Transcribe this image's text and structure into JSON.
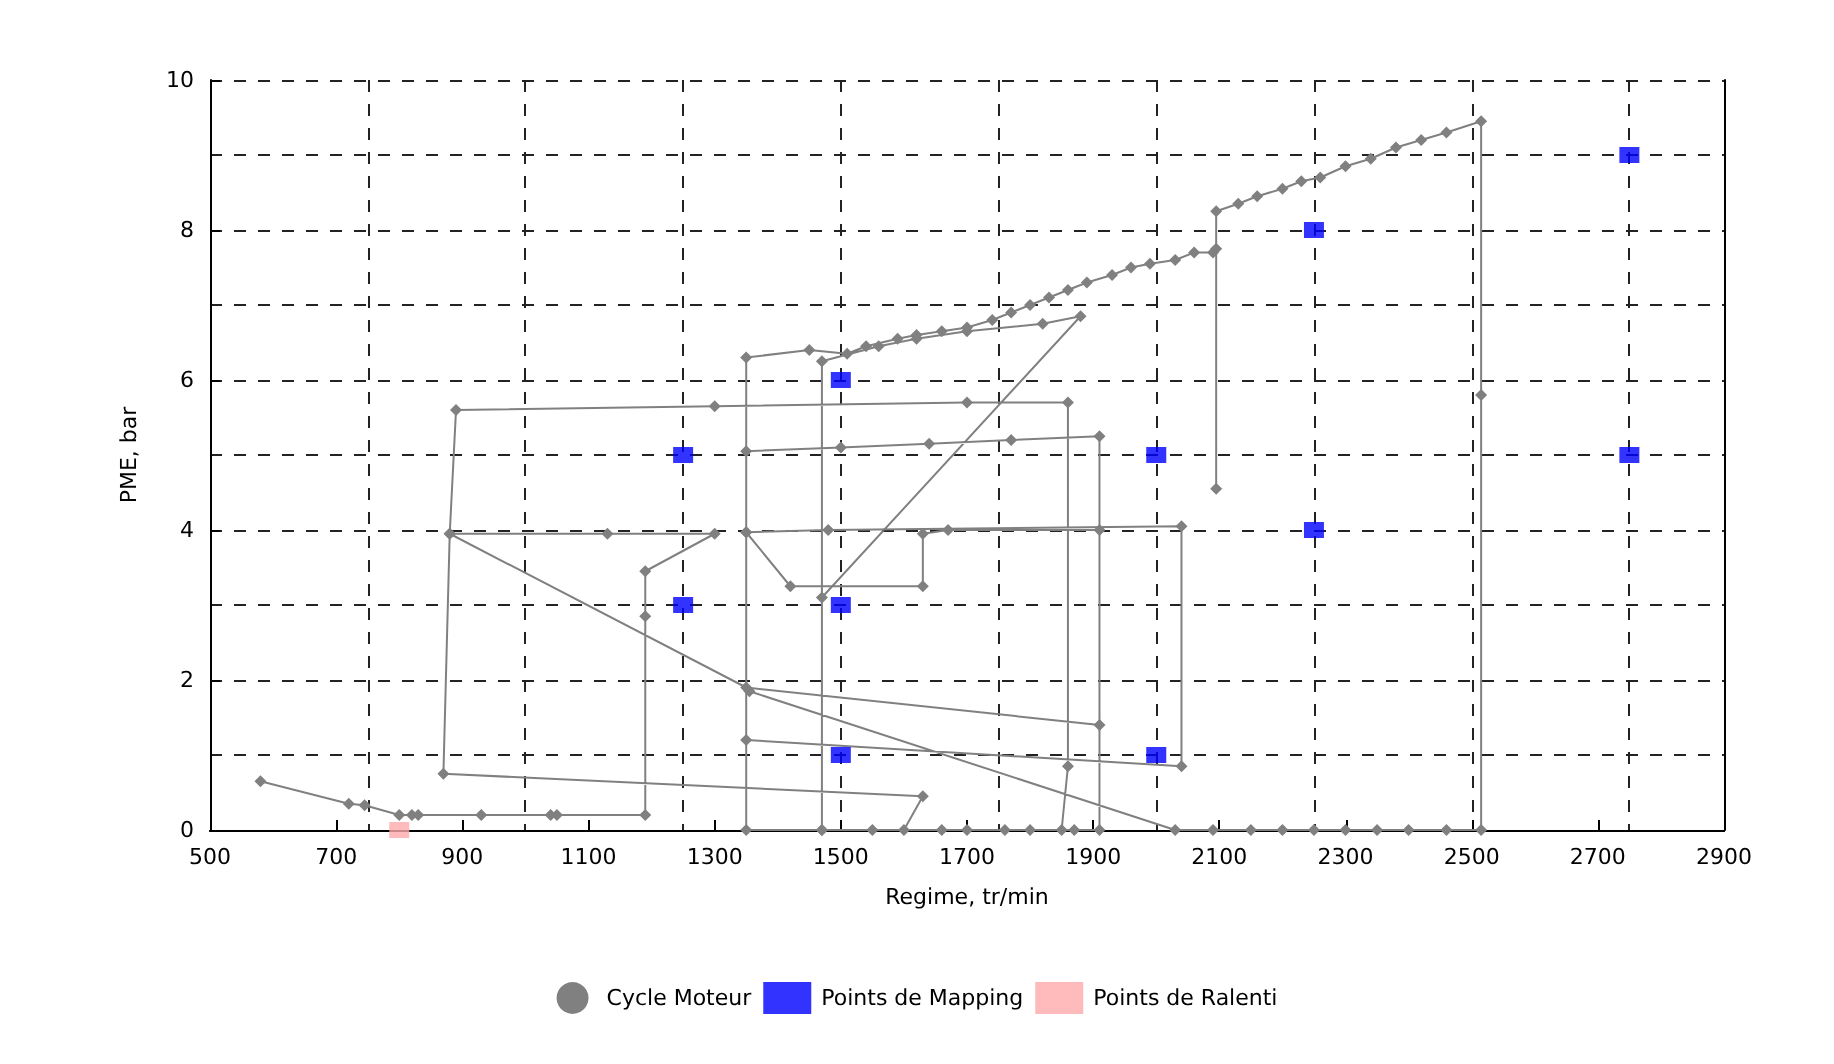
{
  "chart_data": {
    "type": "scatter",
    "xlabel": "Regime, tr/min",
    "ylabel": "PME, bar",
    "xlim": [
      500,
      2900
    ],
    "xticks": [
      500,
      700,
      900,
      1100,
      1300,
      1500,
      1700,
      1900,
      2100,
      2300,
      2500,
      2700,
      2900,
      {
        "value": 750,
        "label": null
      },
      {
        "value": 1000,
        "label": null
      },
      {
        "value": 1250,
        "label": null
      },
      {
        "value": 1500,
        "label": null
      },
      {
        "value": 1750,
        "label": null
      },
      {
        "value": 2000,
        "label": null
      },
      {
        "value": 2250,
        "label": null
      },
      {
        "value": 2500,
        "label": null
      },
      {
        "value": 2750,
        "label": null
      }
    ],
    "ylim": [
      0,
      10
    ],
    "yticks": [
      0,
      2,
      4,
      6,
      8,
      10,
      {
        "value": 1,
        "label": null
      },
      {
        "value": 3,
        "label": null
      },
      {
        "value": 5,
        "label": null
      },
      {
        "value": 7,
        "label": null
      },
      {
        "value": 9,
        "label": null
      }
    ],
    "grid": true,
    "legend": "bottom",
    "series": [
      {
        "name": "Cycle Moteur",
        "type": "line",
        "marker": "diamond",
        "color": "#808080",
        "x": [
          580,
          720,
          745,
          800,
          820,
          830,
          930,
          1040,
          1050,
          1190,
          1190,
          1190,
          1300,
          1130,
          880,
          890,
          1300,
          1700,
          1860,
          1860,
          1850,
          1800,
          1760,
          1700,
          1660,
          1600,
          1630,
          870,
          880,
          1350,
          1910,
          1910,
          1670,
          1630,
          1630,
          1420,
          1350,
          1350,
          2040,
          2040,
          1480,
          1350,
          1350,
          1500,
          1640,
          1770,
          1910,
          1910,
          1870,
          1550,
          1470,
          1470,
          1880,
          1820,
          1700,
          1620,
          1560,
          1470,
          1470,
          1350,
          1350,
          1450,
          1510,
          1540,
          1590,
          1620,
          1660,
          1700,
          1740,
          1770,
          1800,
          1830,
          1860,
          1890,
          1930,
          1960,
          1990,
          2030,
          2060,
          2090,
          2095,
          2095,
          2095,
          2130,
          2160,
          2200,
          2230,
          2260,
          2300,
          2340,
          2380,
          2420,
          2460,
          2515,
          2515,
          2515,
          2460,
          2400,
          2350,
          2300,
          2250,
          2200,
          2150,
          2090,
          2030,
          1355
        ],
        "values": [
          0.65,
          0.35,
          0.33,
          0.2,
          0.2,
          0.2,
          0.2,
          0.2,
          0.2,
          0.2,
          2.85,
          3.45,
          3.95,
          3.95,
          3.95,
          5.6,
          5.65,
          5.7,
          5.7,
          0.85,
          0,
          0,
          0,
          0,
          0,
          0,
          0.45,
          0.75,
          3.95,
          1.9,
          1.4,
          4.0,
          4.0,
          3.95,
          3.25,
          3.25,
          3.97,
          1.2,
          0.85,
          4.05,
          4.0,
          3.97,
          5.05,
          5.1,
          5.15,
          5.2,
          5.25,
          0,
          0,
          0,
          0,
          3.1,
          6.85,
          6.75,
          6.65,
          6.55,
          6.45,
          6.25,
          0,
          0,
          6.3,
          6.4,
          6.35,
          6.45,
          6.55,
          6.6,
          6.65,
          6.7,
          6.8,
          6.9,
          7.0,
          7.1,
          7.2,
          7.3,
          7.4,
          7.5,
          7.55,
          7.6,
          7.7,
          7.7,
          7.75,
          4.55,
          8.25,
          8.35,
          8.45,
          8.55,
          8.65,
          8.7,
          8.85,
          8.95,
          9.1,
          9.2,
          9.3,
          9.45,
          5.8,
          0,
          0,
          0,
          0,
          0,
          0,
          0,
          0,
          0,
          0,
          1.85
        ]
      },
      {
        "name": "Points de Mapping",
        "marker": "square",
        "color": "#0000ff",
        "x": [
          1250,
          1250,
          1500,
          1500,
          1500,
          2000,
          2000,
          2250,
          2250,
          2750,
          2750
        ],
        "values": [
          5,
          3,
          6,
          3,
          1,
          5,
          1,
          8,
          4,
          9,
          5
        ]
      },
      {
        "name": "Points de Ralenti",
        "marker": "square",
        "color": "#ffaaaa",
        "x": [
          800
        ],
        "values": [
          0
        ]
      }
    ]
  }
}
